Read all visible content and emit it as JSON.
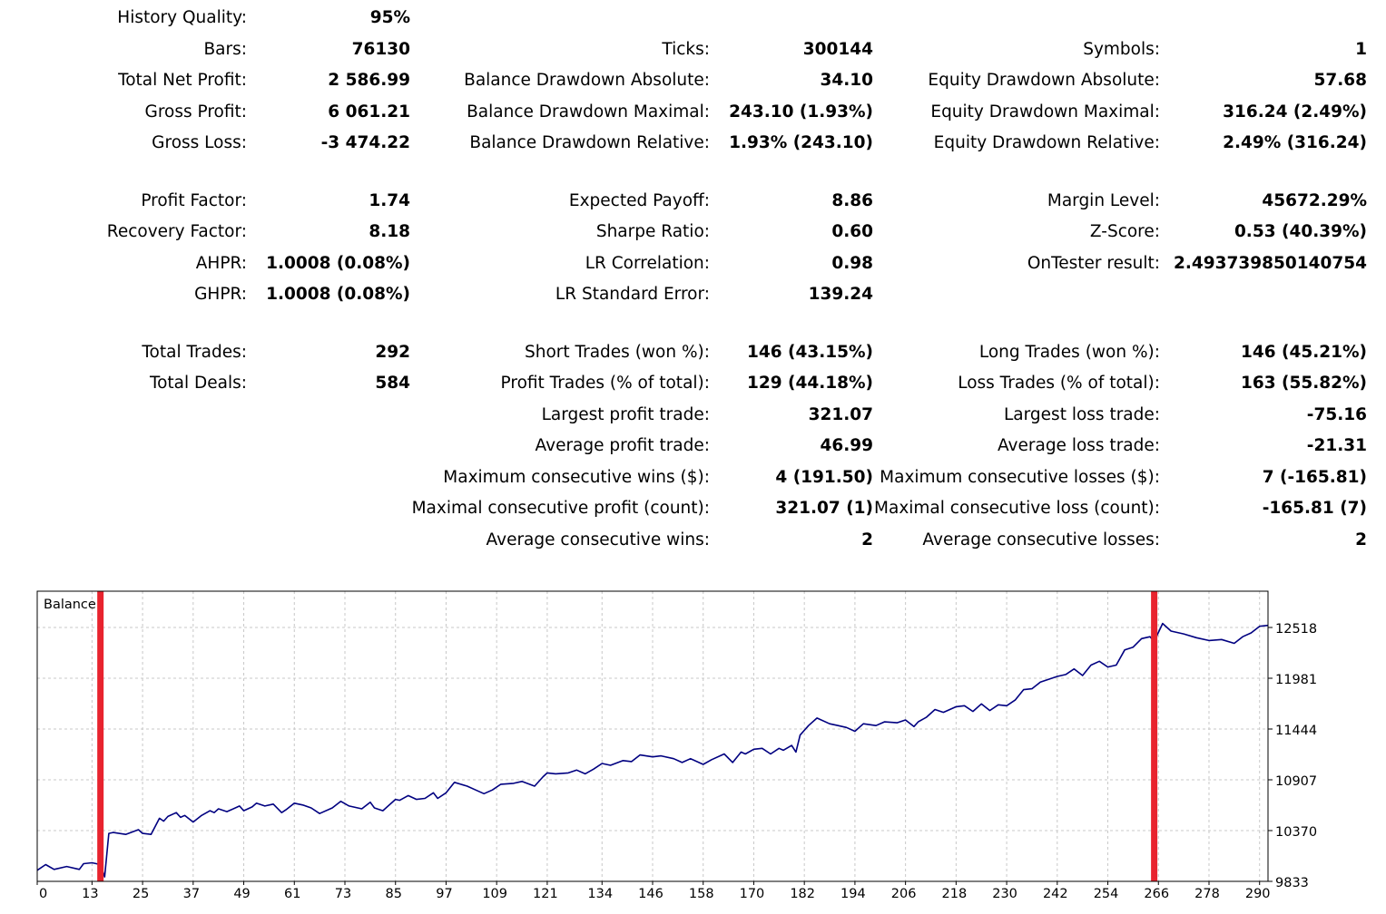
{
  "report": {
    "col1": [
      {
        "label": "History Quality:",
        "value": "95%"
      },
      {
        "label": "Bars:",
        "value": "76130"
      },
      {
        "label": "Total Net Profit:",
        "value": "2 586.99"
      },
      {
        "label": "Gross Profit:",
        "value": "6 061.21"
      },
      {
        "label": "Gross Loss:",
        "value": "-3 474.22"
      },
      {
        "label": "Profit Factor:",
        "value": "1.74"
      },
      {
        "label": "Recovery Factor:",
        "value": "8.18"
      },
      {
        "label": "AHPR:",
        "value": "1.0008 (0.08%)"
      },
      {
        "label": "GHPR:",
        "value": "1.0008 (0.08%)"
      },
      {
        "label": "Total Trades:",
        "value": "292"
      },
      {
        "label": "Total Deals:",
        "value": "584"
      }
    ],
    "col2": [
      {
        "label": "Ticks:",
        "value": "300144"
      },
      {
        "label": "Balance Drawdown Absolute:",
        "value": "34.10"
      },
      {
        "label": "Balance Drawdown Maximal:",
        "value": "243.10 (1.93%)"
      },
      {
        "label": "Balance Drawdown Relative:",
        "value": "1.93% (243.10)"
      },
      {
        "label": "Expected Payoff:",
        "value": "8.86"
      },
      {
        "label": "Sharpe Ratio:",
        "value": "0.60"
      },
      {
        "label": "LR Correlation:",
        "value": "0.98"
      },
      {
        "label": "LR Standard Error:",
        "value": "139.24"
      },
      {
        "label": "Short Trades (won %):",
        "value": "146 (43.15%)"
      },
      {
        "label": "Profit Trades (% of total):",
        "value": "129 (44.18%)"
      },
      {
        "label": "Largest profit trade:",
        "value": "321.07"
      },
      {
        "label": "Average profit trade:",
        "value": "46.99"
      },
      {
        "label": "Maximum consecutive wins ($):",
        "value": "4 (191.50)"
      },
      {
        "label": "Maximal consecutive profit (count):",
        "value": "321.07 (1)"
      },
      {
        "label": "Average consecutive wins:",
        "value": "2"
      }
    ],
    "col3": [
      {
        "label": "Symbols:",
        "value": "1"
      },
      {
        "label": "Equity Drawdown Absolute:",
        "value": "57.68"
      },
      {
        "label": "Equity Drawdown Maximal:",
        "value": "316.24 (2.49%)"
      },
      {
        "label": "Equity Drawdown Relative:",
        "value": "2.49% (316.24)"
      },
      {
        "label": "Margin Level:",
        "value": "45672.29%"
      },
      {
        "label": "Z-Score:",
        "value": "0.53 (40.39%)"
      },
      {
        "label": "OnTester result:",
        "value": "2.493739850140754"
      },
      {
        "label": "Long Trades (won %):",
        "value": "146 (45.21%)"
      },
      {
        "label": "Loss Trades (% of total):",
        "value": "163 (55.82%)"
      },
      {
        "label": "Largest loss trade:",
        "value": "-75.16"
      },
      {
        "label": "Average loss trade:",
        "value": "-21.31"
      },
      {
        "label": "Maximum consecutive losses ($):",
        "value": "7 (-165.81)"
      },
      {
        "label": "Maximal consecutive loss (count):",
        "value": "-165.81 (7)"
      },
      {
        "label": "Average consecutive losses:",
        "value": "2"
      }
    ]
  },
  "chart_data": {
    "type": "line",
    "title": "Balance",
    "x_ticks": [
      0,
      13,
      25,
      37,
      49,
      61,
      73,
      85,
      97,
      109,
      121,
      134,
      146,
      158,
      170,
      182,
      194,
      206,
      218,
      230,
      242,
      254,
      266,
      278,
      290
    ],
    "y_ticks": [
      12518,
      11981,
      11444,
      10907,
      10370,
      9833
    ],
    "xlim": [
      0,
      292
    ],
    "ylim": [
      9833,
      12800
    ],
    "grid": true,
    "colors": {
      "line": "#000080",
      "marker": "#e8232e",
      "grid": "#c8c8c8"
    },
    "markers_x": [
      15,
      265
    ],
    "series": [
      {
        "name": "Balance",
        "x": [
          0,
          2,
          4,
          7,
          10,
          11,
          13,
          15,
          16,
          17,
          18,
          21,
          24,
          25,
          27,
          29,
          30,
          31,
          33,
          34,
          35,
          37,
          39,
          41,
          42,
          43,
          45,
          48,
          49,
          51,
          52,
          54,
          56,
          58,
          59,
          61,
          63,
          65,
          67,
          70,
          72,
          74,
          77,
          79,
          80,
          82,
          85,
          86,
          88,
          90,
          92,
          94,
          95,
          97,
          99,
          102,
          104,
          106,
          108,
          110,
          113,
          115,
          118,
          120,
          121,
          123,
          126,
          128,
          130,
          132,
          134,
          136,
          139,
          141,
          143,
          146,
          148,
          151,
          153,
          155,
          158,
          160,
          163,
          165,
          167,
          168,
          170,
          172,
          174,
          176,
          177,
          179,
          180,
          181,
          183,
          185,
          188,
          190,
          192,
          194,
          196,
          199,
          201,
          204,
          206,
          208,
          209,
          211,
          213,
          215,
          218,
          220,
          222,
          224,
          226,
          228,
          230,
          232,
          234,
          236,
          238,
          240,
          242,
          244,
          246,
          248,
          250,
          252,
          254,
          256,
          258,
          260,
          262,
          264,
          265,
          267,
          269,
          272,
          275,
          278,
          281,
          284,
          286,
          288,
          290,
          292
        ],
        "y": [
          9950,
          10010,
          9960,
          9990,
          9960,
          10020,
          10030,
          10010,
          9880,
          10340,
          10350,
          10330,
          10380,
          10340,
          10330,
          10500,
          10470,
          10520,
          10560,
          10510,
          10530,
          10460,
          10530,
          10580,
          10560,
          10600,
          10570,
          10630,
          10580,
          10620,
          10660,
          10630,
          10650,
          10560,
          10590,
          10660,
          10640,
          10610,
          10550,
          10610,
          10680,
          10630,
          10600,
          10670,
          10610,
          10580,
          10700,
          10690,
          10740,
          10700,
          10710,
          10770,
          10710,
          10770,
          10880,
          10840,
          10800,
          10760,
          10800,
          10860,
          10870,
          10890,
          10840,
          10940,
          10980,
          10970,
          10980,
          11010,
          10970,
          11020,
          11080,
          11060,
          11110,
          11100,
          11170,
          11150,
          11160,
          11130,
          11090,
          11130,
          11070,
          11120,
          11180,
          11090,
          11200,
          11180,
          11230,
          11240,
          11180,
          11240,
          11220,
          11270,
          11200,
          11380,
          11480,
          11560,
          11500,
          11480,
          11460,
          11420,
          11500,
          11480,
          11520,
          11510,
          11540,
          11470,
          11520,
          11570,
          11650,
          11620,
          11680,
          11690,
          11630,
          11710,
          11640,
          11700,
          11690,
          11750,
          11860,
          11870,
          11940,
          11970,
          12000,
          12020,
          12080,
          12010,
          12120,
          12160,
          12100,
          12120,
          12280,
          12310,
          12400,
          12420,
          12370,
          12560,
          12480,
          12450,
          12410,
          12380,
          12390,
          12350,
          12420,
          12460,
          12530,
          12540
        ]
      }
    ]
  }
}
